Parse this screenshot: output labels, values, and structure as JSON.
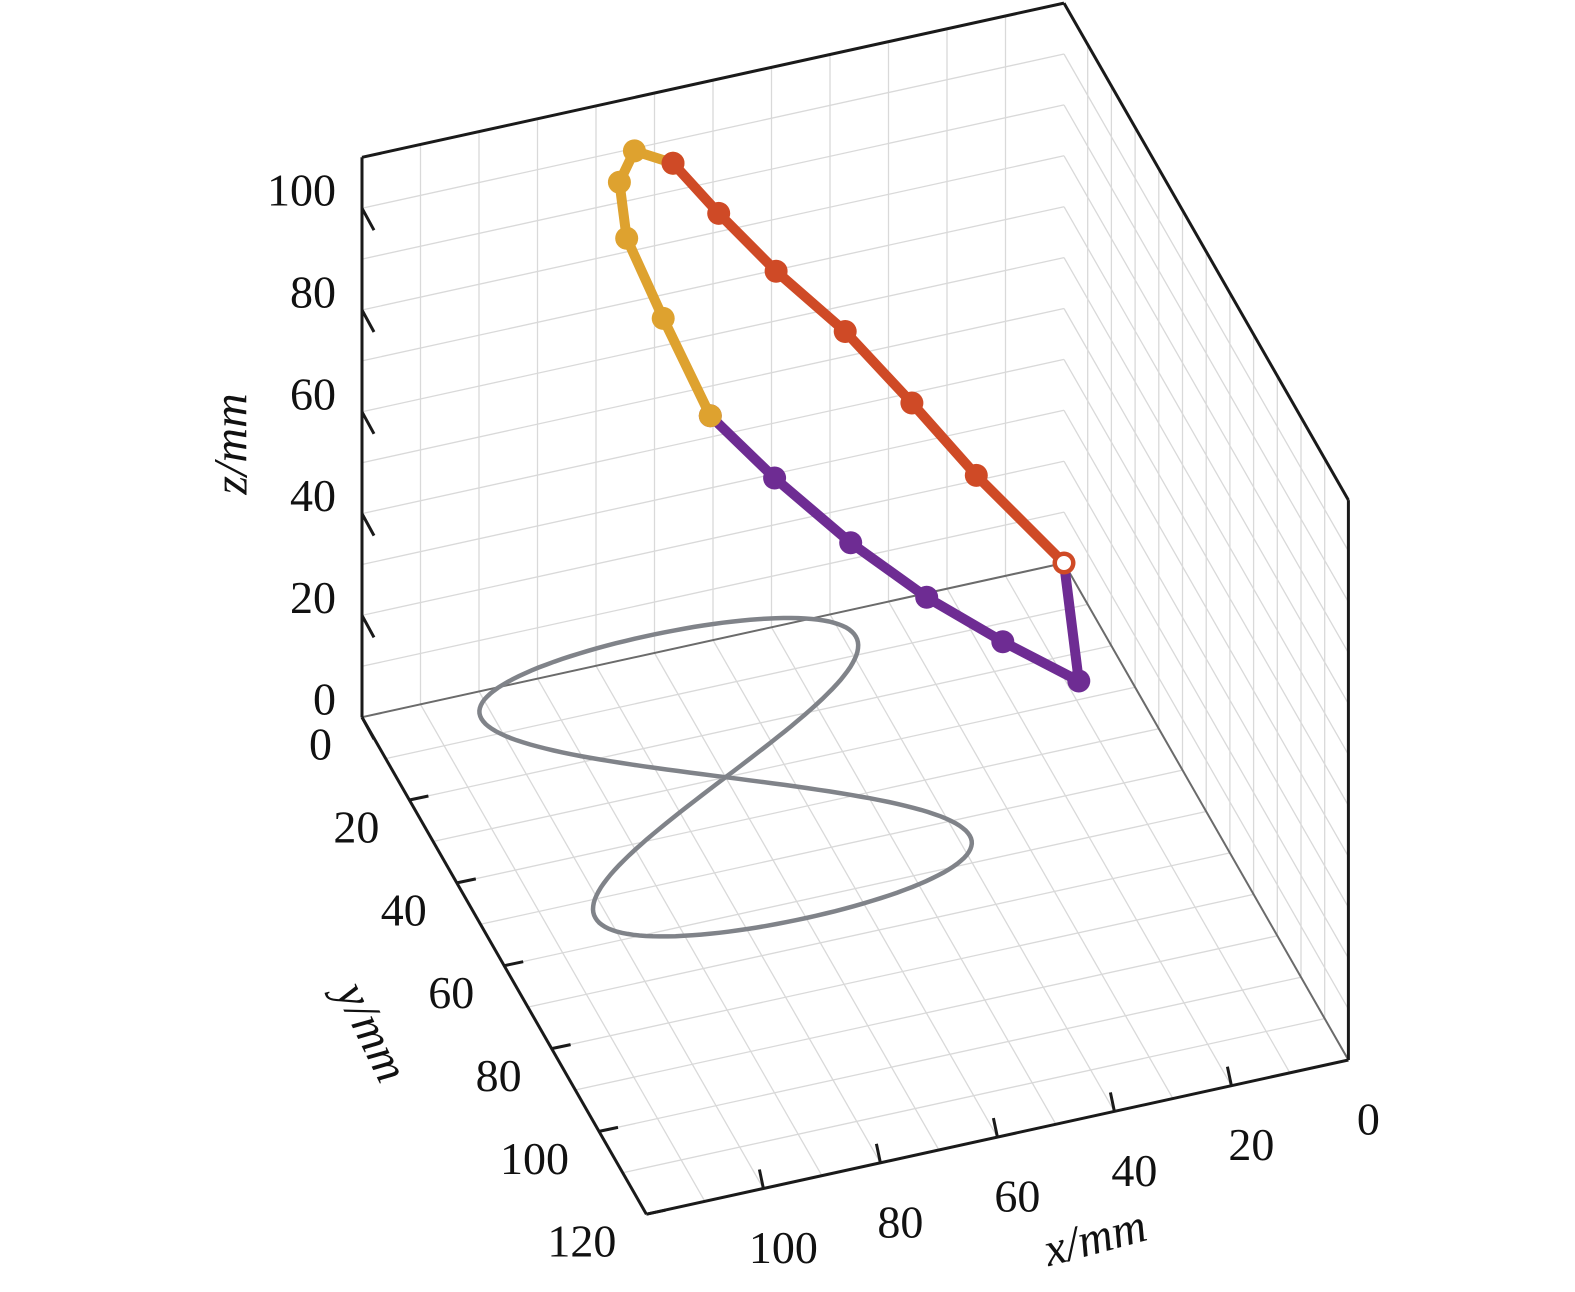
{
  "chart_data": {
    "type": "line3d",
    "xlabel": "x/mm",
    "ylabel": "y/mm",
    "zlabel": "z/mm",
    "xlim": [
      0,
      120
    ],
    "ylim": [
      0,
      120
    ],
    "zlim": [
      0,
      110
    ],
    "xticks": [
      "0",
      "20",
      "40",
      "60",
      "80",
      "100"
    ],
    "yticks": [
      "0",
      "20",
      "40",
      "60",
      "80",
      "100",
      "120"
    ],
    "zticks": [
      "0",
      "20",
      "40",
      "60",
      "80",
      "100"
    ],
    "grid": true,
    "colors": {
      "trajectory": "#808389",
      "segment_purple": "#6e2c93",
      "segment_yellow": "#dea22f",
      "segment_red": "#cf4a26"
    },
    "trajectory": {
      "shape": "figure-eight",
      "plane": "z=0",
      "center": [
        70,
        30
      ],
      "x_amplitude": 32,
      "y_amplitude": 34
    },
    "segments": [
      {
        "color": "segment_purple",
        "points": [
          [
            0,
            0,
            0
          ],
          [
            8,
            26,
            0
          ],
          [
            21,
            26,
            11
          ],
          [
            34,
            26,
            23
          ],
          [
            47,
            26,
            37
          ],
          [
            60,
            26,
            53
          ],
          [
            71,
            26,
            68
          ]
        ]
      },
      {
        "color": "segment_yellow",
        "points": [
          [
            71,
            26,
            68
          ],
          [
            75,
            16,
            80
          ],
          [
            78,
            8,
            90
          ],
          [
            76,
            0,
            94
          ],
          [
            71,
            -6,
            94
          ],
          [
            64,
            -7,
            89
          ]
        ]
      },
      {
        "color": "segment_red",
        "points": [
          [
            64,
            -7,
            89
          ],
          [
            57,
            -5,
            79
          ],
          [
            48,
            -3,
            67
          ],
          [
            37,
            -1,
            54
          ],
          [
            26,
            0,
            38
          ],
          [
            15,
            0,
            21
          ],
          [
            0,
            0,
            0
          ]
        ]
      }
    ]
  }
}
